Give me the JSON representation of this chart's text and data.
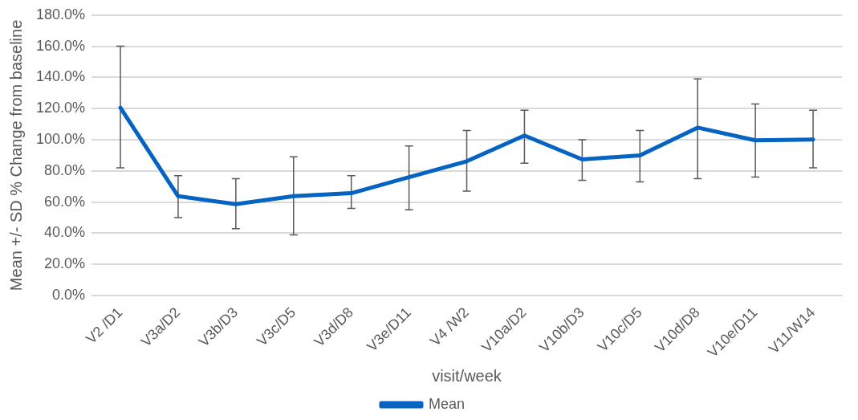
{
  "chart_data": {
    "type": "line",
    "xlabel": "visit/week",
    "ylabel": "Mean +/- SD % Change from baseline",
    "categories": [
      "V2 /D1",
      "V3a/D2",
      "V3b/D3",
      "V3c/D5",
      "V3d/D8",
      "V3e/D11",
      "V4 /W2",
      "V10a/D2",
      "V10b/D3",
      "V10c/D5",
      "V10d/D8",
      "V10e/D11",
      "V11/W14"
    ],
    "series": [
      {
        "name": "Mean",
        "color": "#0563c1",
        "values": [
          120.6,
          63.8,
          58.7,
          63.8,
          65.7,
          76,
          86.2,
          102.7,
          87.4,
          90,
          107.8,
          99.6,
          100.2
        ],
        "errors": [
          [
            82,
            160
          ],
          [
            50,
            77
          ],
          [
            43,
            75
          ],
          [
            39,
            89
          ],
          [
            56,
            77
          ],
          [
            55,
            96
          ],
          [
            67,
            106
          ],
          [
            85,
            119
          ],
          [
            74,
            100
          ],
          [
            73,
            106
          ],
          [
            75,
            139
          ],
          [
            76,
            123
          ],
          [
            82,
            119
          ]
        ]
      }
    ],
    "ylim": [
      0,
      180
    ],
    "yticks": [
      {
        "value": 0,
        "label": "0.0%"
      },
      {
        "value": 20,
        "label": "20.0%"
      },
      {
        "value": 40,
        "label": "40.0%"
      },
      {
        "value": 60,
        "label": "60.0%"
      },
      {
        "value": 80,
        "label": "80.0%"
      },
      {
        "value": 100,
        "label": "100.0%"
      },
      {
        "value": 120,
        "label": "120.0%"
      },
      {
        "value": 140,
        "label": "140.0%"
      },
      {
        "value": 160,
        "label": "160.0%"
      },
      {
        "value": 180,
        "label": "180.0%"
      }
    ],
    "grid": "y",
    "legend": "bottom",
    "marker": "none",
    "line_style": "solid"
  }
}
